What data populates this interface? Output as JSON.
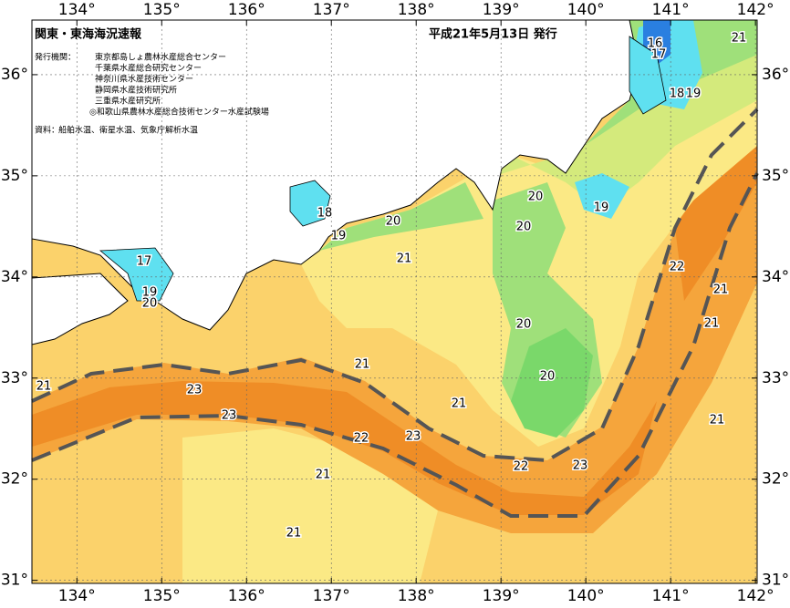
{
  "header": {
    "title": "関東・東海海況速報",
    "date": "平成21年5月13日 発行"
  },
  "publishers": {
    "label": "発行機関：",
    "items": [
      "東京都島しょ農林水産総合センター",
      "千葉県水産総合研究センター",
      "神奈川県水産技術センター",
      "静岡県水産技術研究所",
      "三重県水産研究所",
      "◎和歌山県農林水産総合技術センター水産試験場"
    ]
  },
  "sources": {
    "label": "資料：",
    "text": "船舶水温、衛星水温、気象庁解析水温"
  },
  "map": {
    "xlim": [
      133.47,
      142.02
    ],
    "ylim": [
      30.97,
      36.54
    ],
    "xticks": [
      {
        "value": 134,
        "label": "134°"
      },
      {
        "value": 135,
        "label": "135°"
      },
      {
        "value": 136,
        "label": "136°"
      },
      {
        "value": 137,
        "label": "137°"
      },
      {
        "value": 138,
        "label": "138°"
      },
      {
        "value": 139,
        "label": "139°"
      },
      {
        "value": 140,
        "label": "140°"
      },
      {
        "value": 141,
        "label": "141°"
      },
      {
        "value": 142,
        "label": "142°"
      }
    ],
    "yticks": [
      {
        "value": 31,
        "label": "31°"
      },
      {
        "value": 32,
        "label": "32°"
      },
      {
        "value": 33,
        "label": "33°"
      },
      {
        "value": 34,
        "label": "34°"
      },
      {
        "value": 35,
        "label": "35°"
      },
      {
        "value": 36,
        "label": "36°"
      }
    ],
    "grid": true
  },
  "contour_labels": [
    21,
    16,
    17,
    18,
    19,
    20,
    20,
    19,
    18,
    20,
    19,
    21,
    17,
    19,
    20,
    22,
    21,
    21,
    20,
    20,
    21,
    21,
    23,
    23,
    21,
    22,
    23,
    22,
    23,
    21,
    21,
    21
  ]
}
